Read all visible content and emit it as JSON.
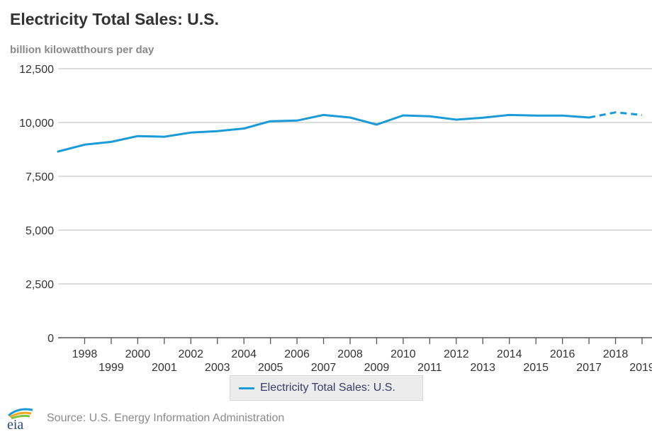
{
  "title": "Electricity Total Sales: U.S.",
  "unit": "billion kilowatthours per day",
  "legend": {
    "label": "Electricity Total Sales: U.S.",
    "color": "#1a9bd7"
  },
  "source": "Source: U.S. Energy Information Administration",
  "logo_text": "eia",
  "chart_data": {
    "type": "line",
    "title": "Electricity Total Sales: U.S.",
    "ylabel": "billion kilowatthours per day",
    "xlabel": "",
    "ylim": [
      0,
      12500
    ],
    "yticks": [
      0,
      2500,
      5000,
      7500,
      10000,
      12500
    ],
    "ytick_labels": [
      "0",
      "2,500",
      "5,000",
      "7,500",
      "10,000",
      "12,500"
    ],
    "x": [
      1997,
      1998,
      1999,
      2000,
      2001,
      2002,
      2003,
      2004,
      2005,
      2006,
      2007,
      2008,
      2009,
      2010,
      2011,
      2012,
      2013,
      2014,
      2015,
      2016,
      2017,
      2018,
      2019
    ],
    "xtick_labels": [
      "1998",
      "1999",
      "2000",
      "2001",
      "2002",
      "2003",
      "2004",
      "2005",
      "2006",
      "2007",
      "2008",
      "2009",
      "2010",
      "2011",
      "2012",
      "2013",
      "2014",
      "2015",
      "2016",
      "2017",
      "2018",
      "2019"
    ],
    "series": [
      {
        "name": "Electricity Total Sales: U.S.",
        "color": "#1a9bd7",
        "values": [
          8650,
          8970,
          9100,
          9370,
          9340,
          9530,
          9600,
          9720,
          10060,
          10090,
          10350,
          10230,
          9900,
          10330,
          10290,
          10130,
          10220,
          10350,
          10320,
          10320,
          10230,
          10470,
          10350
        ],
        "forecast_start": 2017
      }
    ],
    "grid": true,
    "legend_position": "bottom-center"
  }
}
